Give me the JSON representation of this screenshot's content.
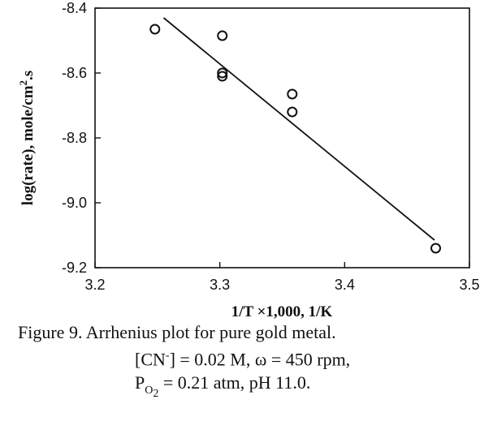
{
  "chart_data": {
    "type": "scatter",
    "xlabel": "1/T  ×1,000,   1/K",
    "ylabel_parts": {
      "left": "log(rate),   mole/cm",
      "sup": "2",
      "right": ".s"
    },
    "xlim": [
      3.2,
      3.5
    ],
    "ylim": [
      -9.2,
      -8.4
    ],
    "xticks": [
      {
        "value": 3.2,
        "label": "3.2"
      },
      {
        "value": 3.3,
        "label": "3.3"
      },
      {
        "value": 3.4,
        "label": "3.4"
      },
      {
        "value": 3.5,
        "label": "3.5"
      }
    ],
    "yticks": [
      {
        "value": -8.4,
        "label": "-8.4"
      },
      {
        "value": -8.6,
        "label": "-8.6"
      },
      {
        "value": -8.8,
        "label": "-8.8"
      },
      {
        "value": -9.0,
        "label": "-9.0"
      },
      {
        "value": -9.2,
        "label": "-9.2"
      }
    ],
    "points": [
      {
        "x": 3.248,
        "y": -8.465
      },
      {
        "x": 3.302,
        "y": -8.485
      },
      {
        "x": 3.302,
        "y": -8.6
      },
      {
        "x": 3.302,
        "y": -8.61
      },
      {
        "x": 3.358,
        "y": -8.665
      },
      {
        "x": 3.358,
        "y": -8.72
      },
      {
        "x": 3.473,
        "y": -9.14
      }
    ],
    "fit_line": {
      "x": [
        3.255,
        3.472
      ],
      "y": [
        -8.43,
        -9.115
      ]
    },
    "grid": false
  },
  "caption": {
    "line1": "Figure 9. Arrhenius plot for pure gold metal.",
    "line2_a": "[CN",
    "line2_sup": "-",
    "line2_b": "] = 0.02 M,    ω = 450 rpm,",
    "line3_a": "P",
    "line3_sub": "O",
    "line3_subsub": "2",
    "line3_b": " = 0.21 atm,   pH 11.0."
  }
}
